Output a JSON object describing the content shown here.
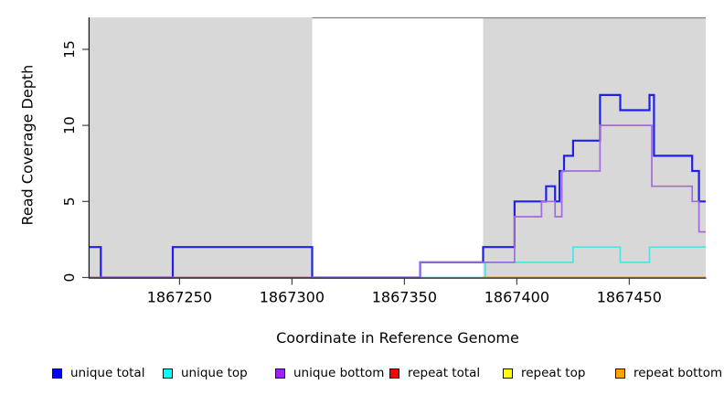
{
  "chart_data": {
    "type": "line",
    "step": true,
    "title": "",
    "xlabel": "Coordinate in Reference Genome",
    "ylabel": "Read Coverage Depth",
    "xlim": [
      1867210,
      1867484
    ],
    "ylim": [
      0,
      17.1
    ],
    "xticks": [
      1867250,
      1867300,
      1867350,
      1867400,
      1867450
    ],
    "yticks": [
      0,
      5,
      10,
      15
    ],
    "grid": false,
    "legend_position": "bottom",
    "shaded_regions": [
      {
        "x0": 1867210,
        "x1": 1867309,
        "color": "#D8D8D8"
      },
      {
        "x0": 1867385,
        "x1": 1867484,
        "color": "#D8D8D8"
      }
    ],
    "top_border": {
      "x0": 1867309,
      "x1": 1867484,
      "color": "#808080"
    },
    "series": [
      {
        "name": "unique total",
        "color": "#2020E8",
        "legend_color": "#0000FF",
        "width": 2.2,
        "end": 1867484,
        "steps": [
          [
            1867210,
            2
          ],
          [
            1867215,
            0
          ],
          [
            1867247,
            2
          ],
          [
            1867309,
            0
          ],
          [
            1867357,
            1
          ],
          [
            1867385,
            2
          ],
          [
            1867399,
            5
          ],
          [
            1867413,
            6
          ],
          [
            1867417,
            5
          ],
          [
            1867419,
            7
          ],
          [
            1867421,
            8
          ],
          [
            1867425,
            9
          ],
          [
            1867437,
            12
          ],
          [
            1867446,
            11
          ],
          [
            1867459,
            12
          ],
          [
            1867461,
            8
          ],
          [
            1867478,
            7
          ],
          [
            1867481,
            5
          ]
        ]
      },
      {
        "name": "unique top",
        "color": "#4FE3E3",
        "legend_color": "#00FFFF",
        "width": 1.7,
        "end": 1867484,
        "steps": [
          [
            1867210,
            0
          ],
          [
            1867386,
            1
          ],
          [
            1867425,
            2
          ],
          [
            1867446,
            1
          ],
          [
            1867459,
            2
          ]
        ]
      },
      {
        "name": "unique bottom",
        "color": "#A36BD9",
        "legend_color": "#A020F0",
        "width": 1.7,
        "end": 1867484,
        "steps": [
          [
            1867210,
            0
          ],
          [
            1867357,
            1
          ],
          [
            1867399,
            4
          ],
          [
            1867411,
            5
          ],
          [
            1867417,
            4
          ],
          [
            1867420,
            7
          ],
          [
            1867437,
            10
          ],
          [
            1867460,
            6
          ],
          [
            1867478,
            5
          ],
          [
            1867481,
            3
          ]
        ]
      },
      {
        "name": "repeat total",
        "color": "#E8405C",
        "legend_color": "#FF0000",
        "width": 1.3,
        "end": 1867309,
        "steps": [
          [
            1867210,
            0
          ]
        ]
      },
      {
        "name": "repeat top",
        "color": "#FFEE00",
        "legend_color": "#FFFF00",
        "width": 1.3,
        "end": 1867484,
        "steps": [
          [
            1867385,
            0
          ]
        ]
      },
      {
        "name": "repeat bottom",
        "color": "#FF9E1B",
        "legend_color": "#FFA500",
        "width": 2.0,
        "end": 1867484,
        "steps": [
          [
            1867385,
            0
          ]
        ]
      }
    ]
  }
}
